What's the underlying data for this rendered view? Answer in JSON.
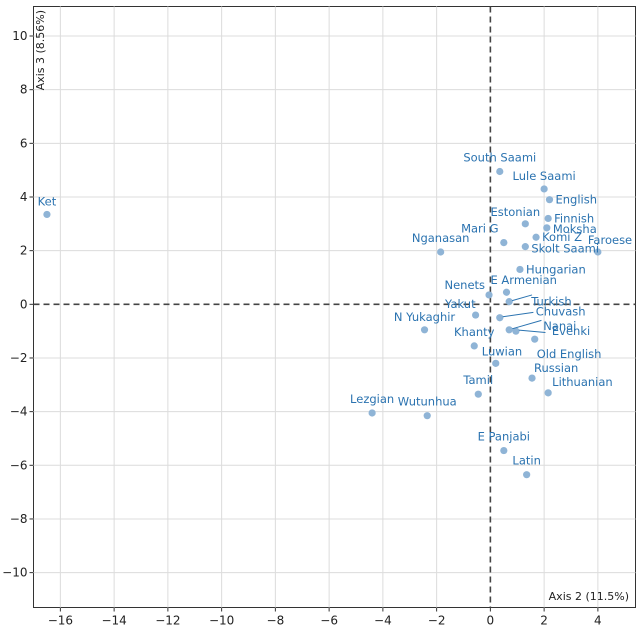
{
  "chart_data": {
    "type": "scatter",
    "xlabel": "Axis 2 (11.5%)",
    "ylabel": "Axis 3 (8.56%)",
    "xlim": [
      -17,
      5.4
    ],
    "ylim": [
      -11.3,
      11.1
    ],
    "xticks": [
      -16,
      -14,
      -12,
      -10,
      -8,
      -6,
      -4,
      -2,
      0,
      2,
      4
    ],
    "yticks": [
      -10,
      -8,
      -6,
      -4,
      -2,
      0,
      2,
      4,
      6,
      8,
      10
    ],
    "tick_labels_x": [
      "−16",
      "−14",
      "−12",
      "−10",
      "−8",
      "−6",
      "−4",
      "−2",
      "0",
      "2",
      "4"
    ],
    "tick_labels_y": [
      "−10",
      "−8",
      "−6",
      "−4",
      "−2",
      "0",
      "2",
      "4",
      "6",
      "8",
      "10"
    ],
    "grid": true,
    "reference_lines": {
      "x": 0,
      "y": 0,
      "style": "dashed"
    },
    "point_color": "#8fb4d6",
    "label_color": "#2b73b0",
    "points": [
      {
        "label": "Ket",
        "x": -16.5,
        "y": 3.35
      },
      {
        "label": "South Saami",
        "x": 0.35,
        "y": 4.95
      },
      {
        "label": "Lule Saami",
        "x": 2.0,
        "y": 4.3
      },
      {
        "label": "English",
        "x": 2.2,
        "y": 3.9
      },
      {
        "label": "Finnish",
        "x": 2.15,
        "y": 3.2
      },
      {
        "label": "Estonian",
        "x": 1.3,
        "y": 3.0
      },
      {
        "label": "Moksha",
        "x": 2.1,
        "y": 2.85
      },
      {
        "label": "Mari G",
        "x": 0.5,
        "y": 2.3
      },
      {
        "label": "Komi Z",
        "x": 1.7,
        "y": 2.5
      },
      {
        "label": "Skolt Saami",
        "x": 1.3,
        "y": 2.15
      },
      {
        "label": "Faroese",
        "x": 4.0,
        "y": 1.95
      },
      {
        "label": "Nganasan",
        "x": -1.85,
        "y": 1.95
      },
      {
        "label": "Hungarian",
        "x": 1.1,
        "y": 1.3
      },
      {
        "label": "E Armenian",
        "x": 0.6,
        "y": 0.45
      },
      {
        "label": "Nenets",
        "x": -0.05,
        "y": 0.35
      },
      {
        "label": "Turkish",
        "x": 0.7,
        "y": 0.1
      },
      {
        "label": "Yakut",
        "x": -0.55,
        "y": -0.4
      },
      {
        "label": "Chuvash",
        "x": 0.35,
        "y": -0.5
      },
      {
        "label": "N Yukaghir",
        "x": -2.45,
        "y": -0.95
      },
      {
        "label": "Nanai",
        "x": 0.7,
        "y": -0.95
      },
      {
        "label": "Evenki",
        "x": 0.95,
        "y": -1.0
      },
      {
        "label": "Khanty",
        "x": -0.6,
        "y": -1.55
      },
      {
        "label": "Old English",
        "x": 1.65,
        "y": -1.3
      },
      {
        "label": "Luwian",
        "x": 0.2,
        "y": -2.2
      },
      {
        "label": "Russian",
        "x": 1.55,
        "y": -2.75
      },
      {
        "label": "Lithuanian",
        "x": 2.15,
        "y": -3.3
      },
      {
        "label": "Tamil",
        "x": -0.45,
        "y": -3.35
      },
      {
        "label": "Lezgian",
        "x": -4.4,
        "y": -4.05
      },
      {
        "label": "Wutunhua",
        "x": -2.35,
        "y": -4.15
      },
      {
        "label": "E Panjabi",
        "x": 0.5,
        "y": -5.45
      },
      {
        "label": "Latin",
        "x": 1.35,
        "y": -6.35
      }
    ]
  }
}
